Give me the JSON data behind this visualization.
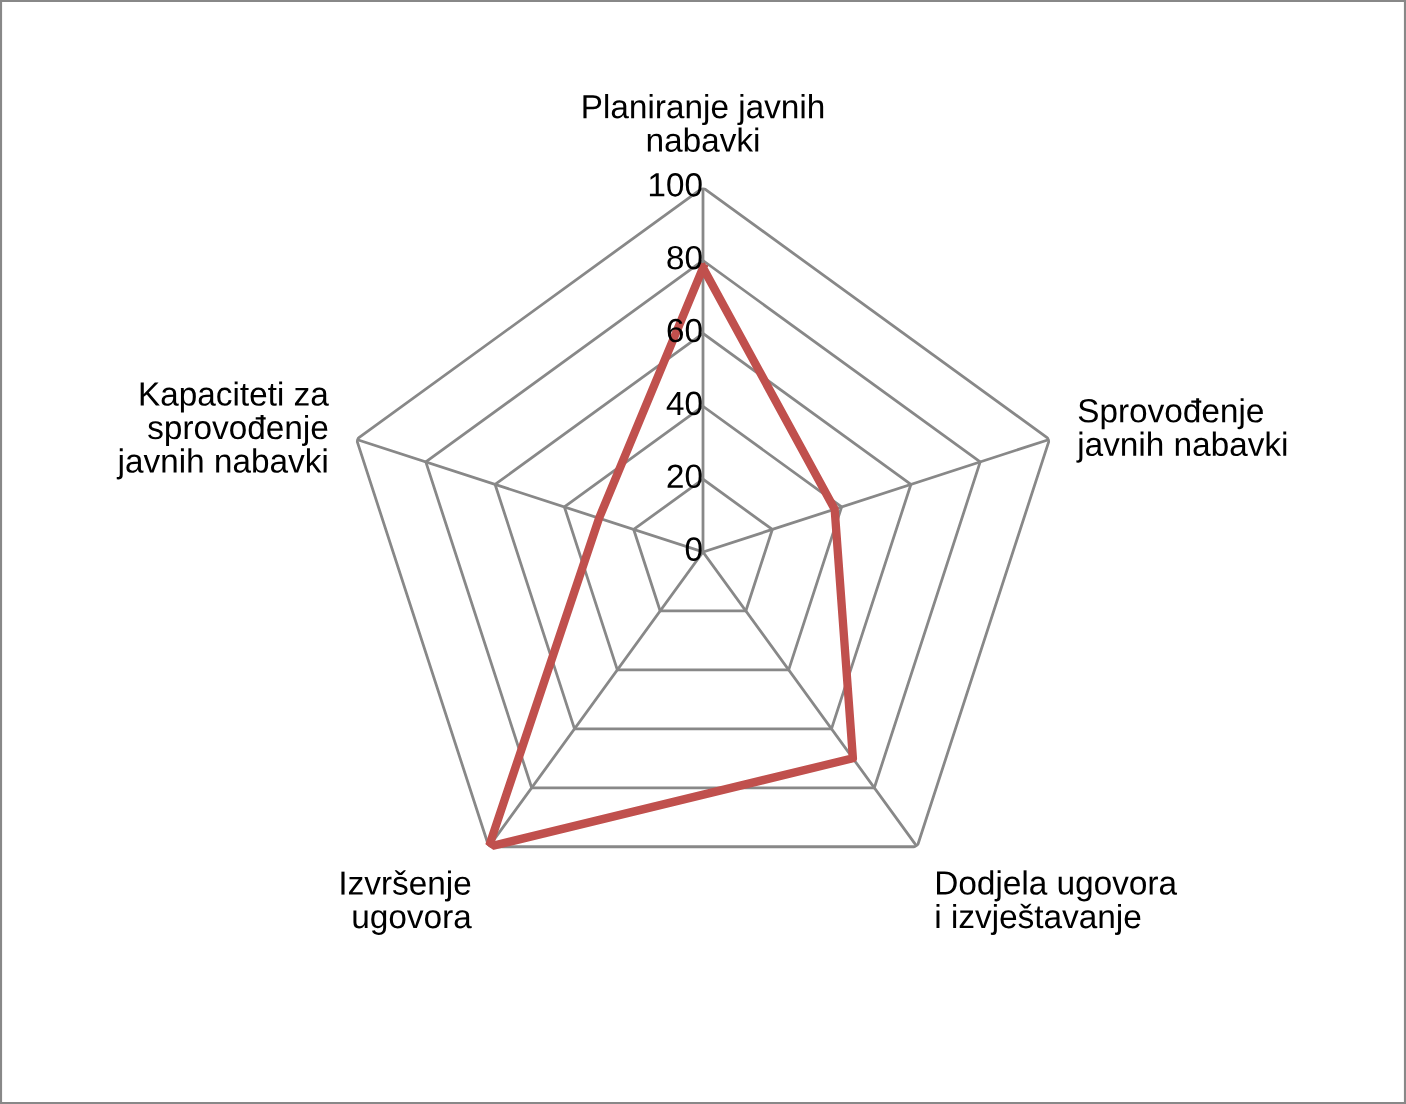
{
  "chart_data": {
    "type": "radar",
    "categories": [
      "Planiranje javnih\nnabavki",
      "Sprovođenje\njavnih nabavki",
      "Dodjela ugovora\ni izvještavanje",
      "Izvršenje\nugovora",
      "Kapaciteti za\nsprovođenje\njavnih nabavki"
    ],
    "series": [
      {
        "color": "#c0504d",
        "values": [
          78,
          38,
          70,
          100,
          30
        ]
      }
    ],
    "ylim": [
      0,
      100
    ],
    "yticks": [
      0,
      20,
      40,
      60,
      80,
      100
    ],
    "grid": true,
    "legend": false
  }
}
